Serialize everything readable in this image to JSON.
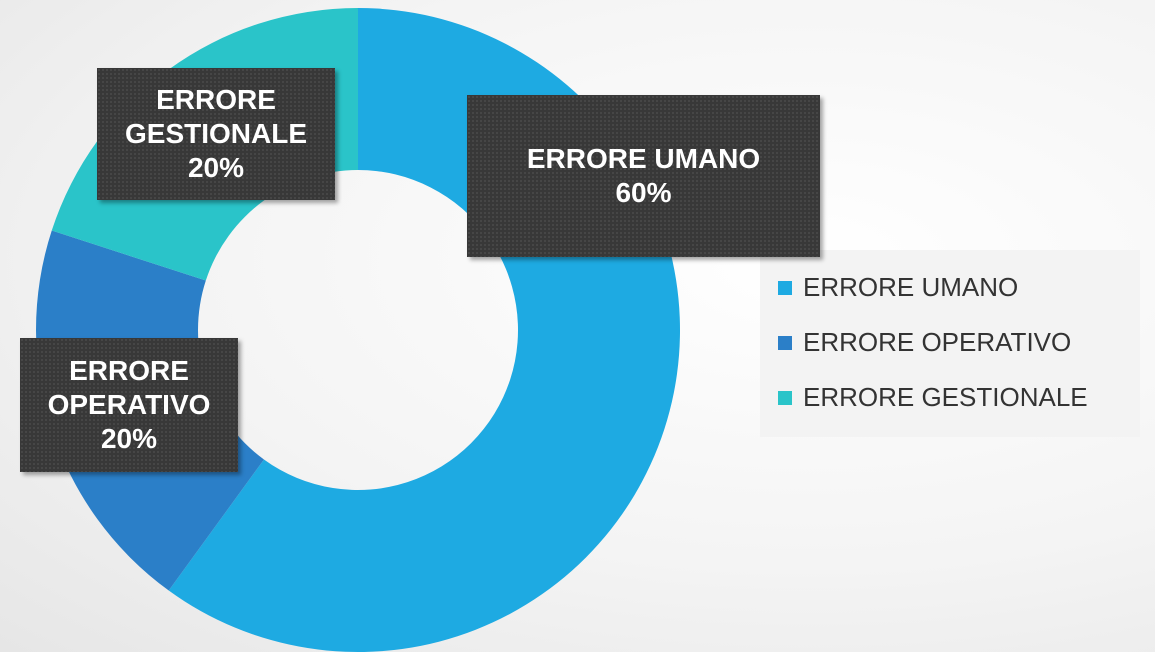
{
  "chart_data": {
    "type": "donut",
    "categories": [
      "ERRORE UMANO",
      "ERRORE OPERATIVO",
      "ERRORE GESTIONALE"
    ],
    "values": [
      60,
      20,
      20
    ],
    "value_labels": [
      "60%",
      "20%",
      "20%"
    ],
    "colors": [
      "#1eaae2",
      "#2b7fc8",
      "#2ac4c9"
    ],
    "legend": "right"
  }
}
